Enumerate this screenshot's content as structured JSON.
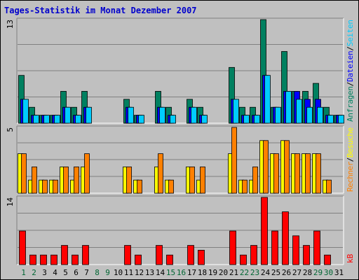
{
  "title": "Tages-Statistik im Monat Dezember 2007",
  "colors": {
    "background": "#c0c0c0",
    "title": "#0000cc",
    "weekday": "#000000",
    "weekend": "#006633",
    "anfragen": "#008060",
    "dateien": "#0000ff",
    "seiten": "#00ccff",
    "besuche": "#ffff00",
    "rechner": "#ff8000",
    "kb": "#ff0000"
  },
  "chart_data": {
    "type": "bar",
    "x": [
      "1",
      "2",
      "3",
      "4",
      "5",
      "6",
      "7",
      "8",
      "9",
      "10",
      "11",
      "12",
      "13",
      "14",
      "15",
      "16",
      "17",
      "18",
      "19",
      "20",
      "21",
      "22",
      "23",
      "24",
      "25",
      "26",
      "27",
      "28",
      "29",
      "30",
      "31"
    ],
    "weekend_days": [
      "1",
      "2",
      "8",
      "9",
      "15",
      "16",
      "22",
      "23",
      "29",
      "30"
    ],
    "panels": [
      {
        "id": "traffic",
        "ymax_label": "13",
        "ylim": [
          0,
          13
        ],
        "right_labels": [
          {
            "text": "Anfragen",
            "color": "#008060"
          },
          {
            "text": "/",
            "color": "#000000"
          },
          {
            "text": "Dateien",
            "color": "#0000ff"
          },
          {
            "text": "/",
            "color": "#000000"
          },
          {
            "text": "Seiten",
            "color": "#00ccff"
          }
        ],
        "series": [
          {
            "name": "Anfragen",
            "color": "#008060",
            "values": [
              6,
              2,
              1,
              1,
              4,
              2,
              4,
              0,
              0,
              0,
              3,
              1,
              0,
              4,
              2,
              0,
              3,
              2,
              0,
              0,
              7,
              2,
              2,
              13,
              2,
              9,
              4,
              4,
              5,
              2,
              1
            ]
          },
          {
            "name": "Dateien",
            "color": "#0000ff",
            "values": [
              3,
              1,
              1,
              1,
              2,
              1,
              2,
              0,
              0,
              0,
              2,
              1,
              0,
              2,
              1,
              0,
              2,
              1,
              0,
              0,
              3,
              1,
              1,
              6,
              2,
              4,
              4,
              3,
              3,
              1,
              1
            ]
          },
          {
            "name": "Seiten",
            "color": "#00ccff",
            "values": [
              3,
              1,
              1,
              1,
              2,
              1,
              2,
              0,
              0,
              0,
              2,
              1,
              0,
              2,
              1,
              0,
              2,
              1,
              0,
              0,
              3,
              1,
              1,
              6,
              2,
              4,
              3,
              2,
              2,
              1,
              1
            ]
          }
        ]
      },
      {
        "id": "visits",
        "ymax_label": "5",
        "ylim": [
          0,
          5
        ],
        "right_labels": [
          {
            "text": "Rechner",
            "color": "#ff8000"
          },
          {
            "text": "/",
            "color": "#000000"
          },
          {
            "text": "Besuche",
            "color": "#ffff00"
          }
        ],
        "series": [
          {
            "name": "Besuche",
            "color": "#ffff00",
            "values": [
              3,
              1,
              1,
              1,
              2,
              1,
              2,
              0,
              0,
              0,
              2,
              1,
              0,
              2,
              1,
              0,
              2,
              1,
              0,
              0,
              3,
              1,
              1,
              4,
              3,
              4,
              3,
              3,
              3,
              1,
              0
            ]
          },
          {
            "name": "Rechner",
            "color": "#ff8000",
            "values": [
              3,
              2,
              1,
              1,
              2,
              2,
              3,
              0,
              0,
              0,
              2,
              1,
              0,
              3,
              1,
              0,
              2,
              2,
              0,
              0,
              5,
              1,
              2,
              4,
              3,
              4,
              3,
              3,
              3,
              1,
              0
            ]
          }
        ]
      },
      {
        "id": "kb",
        "ymax_label": "14",
        "ylim": [
          0,
          14
        ],
        "right_labels": [
          {
            "text": "kB",
            "color": "#ff0000"
          }
        ],
        "series": [
          {
            "name": "kB",
            "color": "#ff0000",
            "values": [
              7,
              2,
              2,
              2,
              4,
              2,
              4,
              0,
              0,
              0,
              4,
              2,
              0,
              4,
              2,
              0,
              4,
              3,
              0,
              0,
              7,
              2,
              4,
              14,
              7,
              11,
              6,
              4,
              7,
              2,
              0
            ]
          }
        ]
      }
    ]
  }
}
